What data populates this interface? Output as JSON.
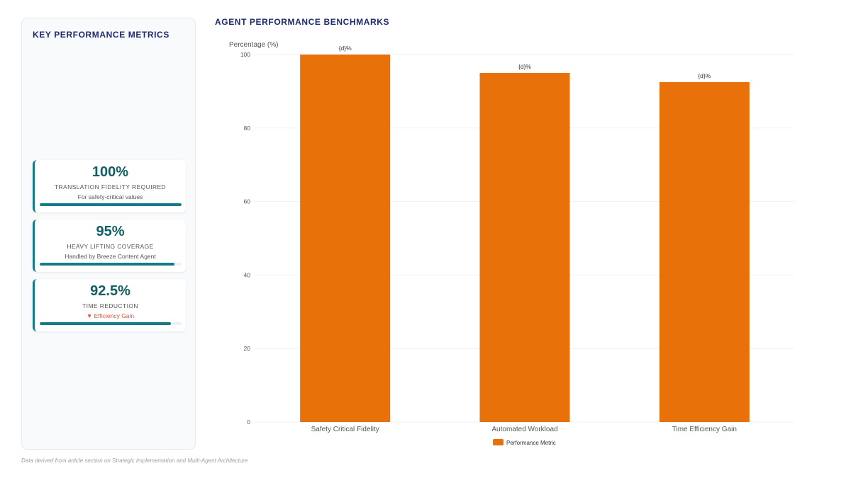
{
  "metrics_panel": {
    "title": "KEY PERFORMANCE METRICS",
    "cards": [
      {
        "value": "100%",
        "label": "TRANSLATION FIDELITY REQUIRED",
        "sub": "For safety-critical values",
        "progress": 100
      },
      {
        "value": "95%",
        "label": "HEAVY LIFTING COVERAGE",
        "sub": "Handled by Breeze Content Agent",
        "progress": 95
      },
      {
        "value": "92.5%",
        "label": "TIME REDUCTION",
        "sub": "▼ Efficiency Gain",
        "progress": 92.5
      }
    ]
  },
  "chart_title": "AGENT PERFORMANCE BENCHMARKS",
  "chart_data": {
    "type": "bar",
    "categories": [
      "Safety Critical Fidelity",
      "Automated Workload",
      "Time Efficiency Gain"
    ],
    "series": [
      {
        "name": "Performance Metric",
        "values": [
          100,
          95,
          92.5
        ],
        "color": "#e8710a"
      }
    ],
    "data_labels": [
      "{d}%",
      "{d}%",
      "{d}%"
    ],
    "ylabel": "Percentage (%)",
    "ylim": [
      0,
      100
    ],
    "yticks": [
      0,
      20,
      40,
      60,
      80,
      100
    ],
    "grid": true,
    "legend_position": "bottom-center"
  },
  "footnote": "Data derived from article section on Strategic Implementation and Multi-Agent Architecture",
  "colors": {
    "accent": "#137c86",
    "bar": "#e8710a",
    "title": "#1e2a6e",
    "trend": "#e2543b"
  }
}
